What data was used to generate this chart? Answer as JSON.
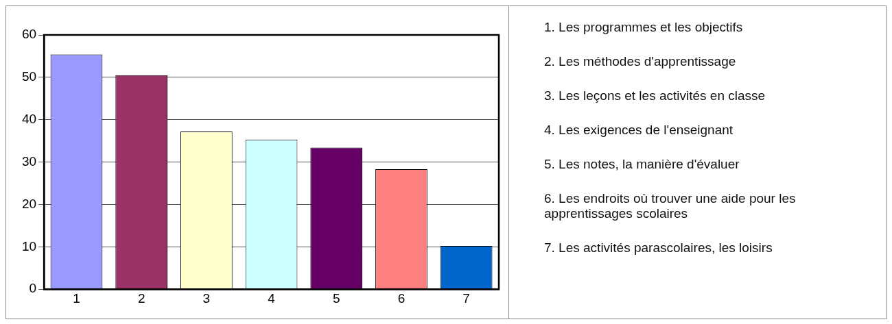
{
  "chart_data": {
    "type": "bar",
    "categories": [
      "1",
      "2",
      "3",
      "4",
      "5",
      "6",
      "7"
    ],
    "values": [
      55.4,
      50.5,
      37.2,
      35.3,
      33.4,
      28.3,
      10.2
    ],
    "colors": [
      "#9999ff",
      "#993366",
      "#ffffcc",
      "#ccffff",
      "#660066",
      "#ff8080",
      "#0066cc"
    ],
    "ylim": [
      0,
      60
    ],
    "yticks": [
      0,
      10,
      20,
      30,
      40,
      50,
      60
    ],
    "grid": "y",
    "legend": false,
    "annotations": [
      "1. Les programmes et les objectifs",
      "2. Les méthodes d'apprentissage",
      "3. Les leçons et les activités en classe",
      "4. Les exigences de l'enseignant",
      "5. Les notes, la manière d'évaluer",
      "6. Les endroits où trouver une aide pour les apprentissages scolaires",
      "7. Les activités parascolaires, les loisirs"
    ]
  }
}
